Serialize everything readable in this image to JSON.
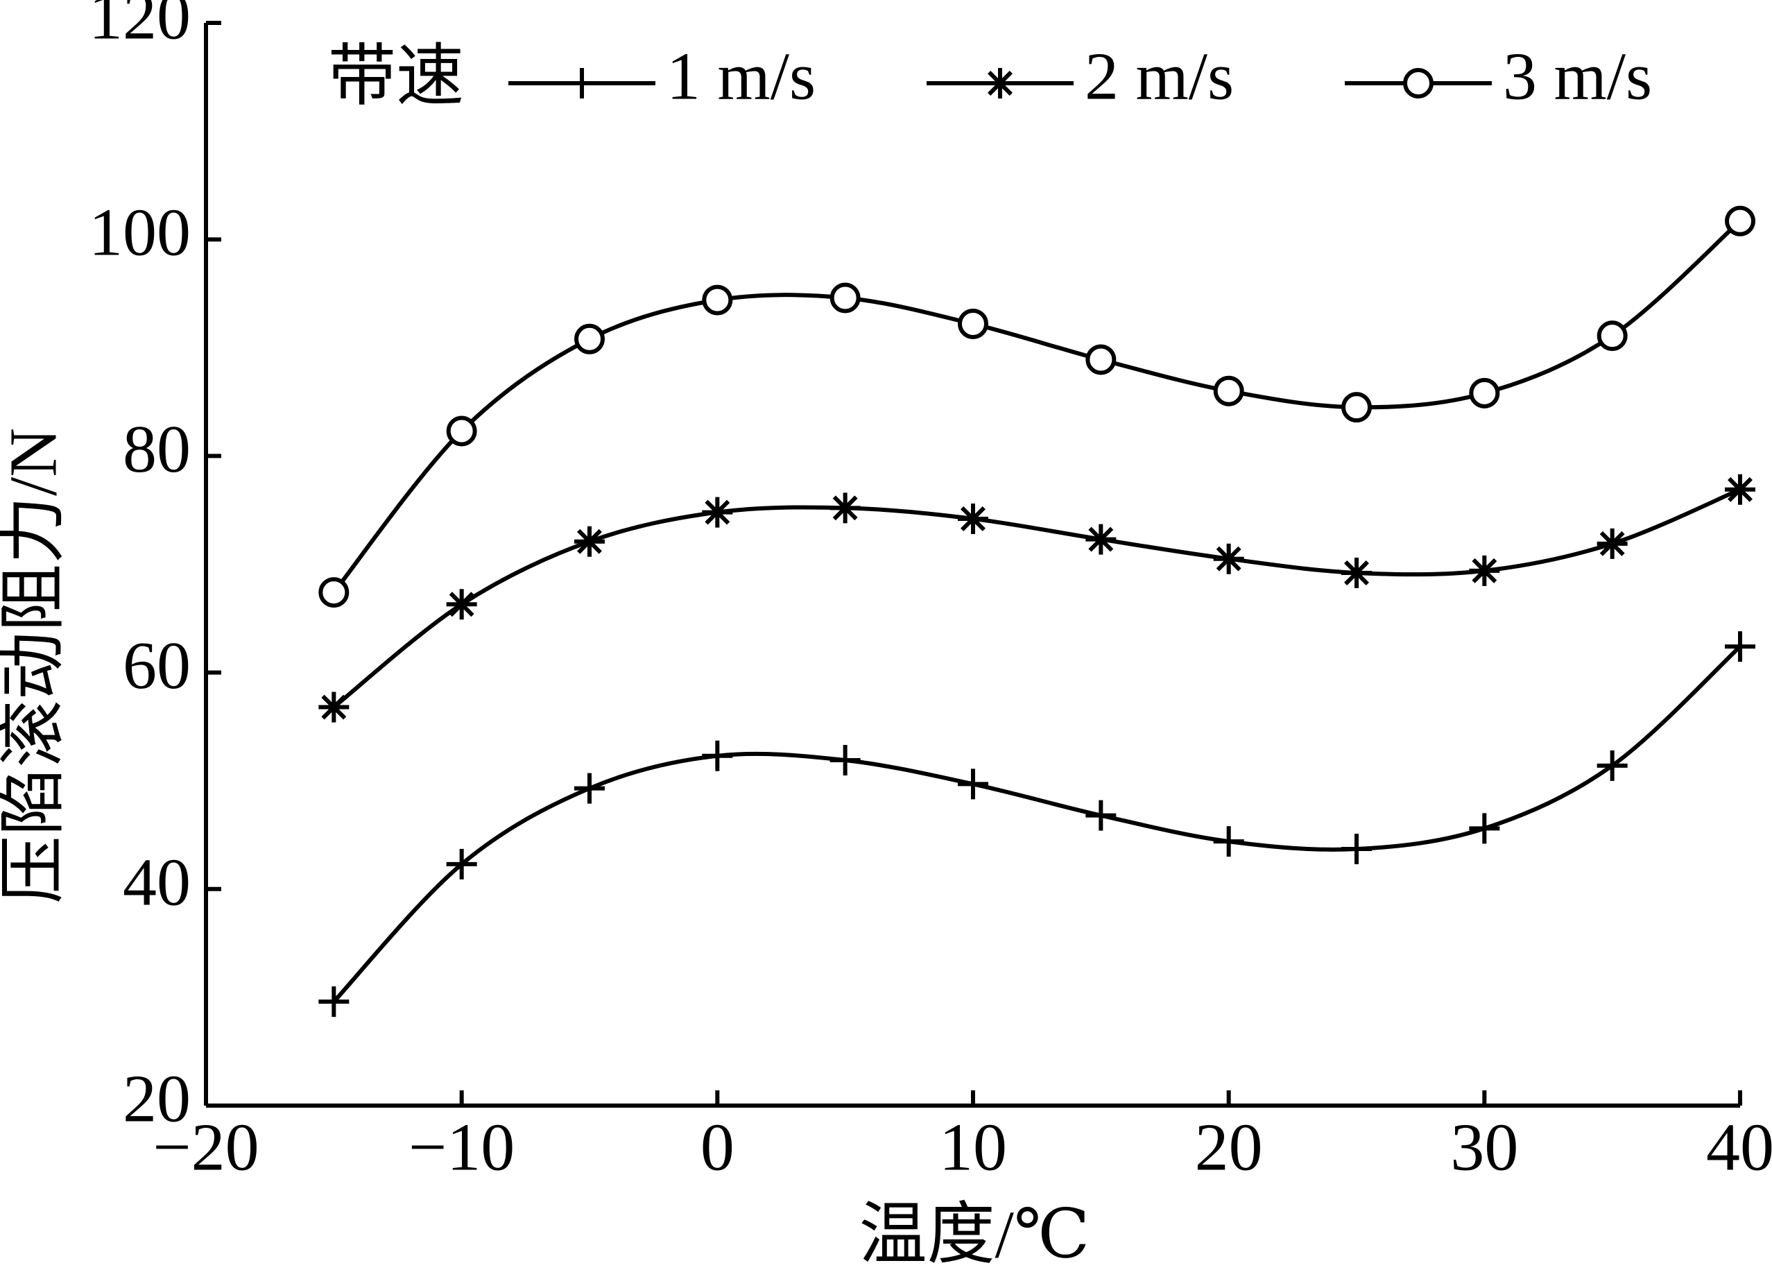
{
  "chart_data": {
    "type": "line",
    "x_label": "温度/℃",
    "y_label": "压陷滚动阻力/N",
    "legend_title": "带速",
    "legend": "top",
    "x": [
      -15,
      -10,
      -5,
      0,
      5,
      10,
      15,
      20,
      25,
      30,
      35,
      40
    ],
    "series": [
      {
        "name": "1 m/s",
        "color": "#000000",
        "marker": "plus",
        "values": [
          29.6,
          42.3,
          49.3,
          52.3,
          51.9,
          49.7,
          46.8,
          44.4,
          43.7,
          45.6,
          51.4,
          62.4
        ]
      },
      {
        "name": "2 m/s",
        "color": "#000000",
        "marker": "star",
        "values": [
          56.8,
          66.3,
          72.1,
          74.8,
          75.2,
          74.2,
          72.3,
          70.5,
          69.2,
          69.4,
          71.9,
          76.9
        ]
      },
      {
        "name": "3 m/s",
        "color": "#000000",
        "marker": "circle",
        "values": [
          67.4,
          82.3,
          90.8,
          94.4,
          94.6,
          92.2,
          88.9,
          86.0,
          84.5,
          85.8,
          91.1,
          101.7
        ]
      }
    ],
    "xlim": [
      -20,
      40
    ],
    "xticks": [
      {
        "value": -20,
        "label": "−20"
      },
      {
        "value": -10,
        "label": "−10"
      },
      0,
      10,
      20,
      30,
      40
    ],
    "ylim": [
      20,
      120
    ],
    "yticks": [
      20,
      40,
      60,
      80,
      100,
      120
    ],
    "grid": false,
    "smooth": true
  }
}
